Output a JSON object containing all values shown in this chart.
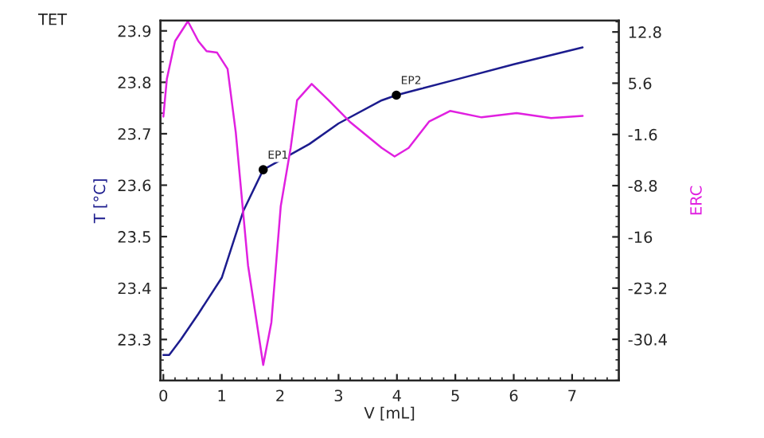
{
  "chart_data": {
    "type": "line",
    "title": "TET",
    "xlabel": "V [mL]",
    "ylabel": "T [°C]",
    "y2label": "ERC",
    "xlim": [
      -0.05,
      7.8
    ],
    "xticks": [
      0,
      1,
      2,
      3,
      4,
      5,
      6,
      7
    ],
    "ylim": [
      23.22,
      23.92
    ],
    "yticks": [
      23.3,
      23.4,
      23.5,
      23.6,
      23.7,
      23.8,
      23.9
    ],
    "y2lim": [
      -36.2,
      14.4
    ],
    "y2ticks": [
      -30.4,
      -23.2,
      -16,
      -8.8,
      -1.6,
      5.6,
      12.8
    ],
    "grid": false,
    "legend": false,
    "series": [
      {
        "color": "#1c1c8e",
        "x": [
          0,
          0.1,
          0.3,
          0.6,
          1.0,
          1.37,
          1.71,
          2.5,
          3.0,
          3.74,
          3.99,
          5.0,
          6.0,
          7.18
        ],
        "values": [
          23.27,
          23.27,
          23.3,
          23.35,
          23.42,
          23.55,
          23.63,
          23.68,
          23.72,
          23.765,
          23.775,
          23.805,
          23.835,
          23.868
        ]
      },
      {
        "color": "#e020e0",
        "axis": "y2",
        "x": [
          0,
          0.06,
          0.2,
          0.42,
          0.6,
          0.74,
          0.92,
          1.1,
          1.24,
          1.45,
          1.71,
          1.85,
          2.01,
          2.18,
          2.29,
          2.54,
          2.83,
          3.19,
          3.74,
          3.96,
          4.2,
          4.55,
          4.91,
          5.45,
          6.05,
          6.64,
          7.18
        ],
        "values": [
          0.9,
          6.2,
          11.5,
          14.3,
          11.5,
          10.1,
          9.9,
          7.6,
          -1.3,
          -20,
          -34.0,
          -28,
          -11.7,
          -3.5,
          3.2,
          5.5,
          3.2,
          0.2,
          -3.5,
          -4.7,
          -3.5,
          0.2,
          1.7,
          0.8,
          1.4,
          0.7,
          1.0
        ]
      },
      {
        "type": "scatter",
        "color": "#000000",
        "marker": "circle",
        "x": [
          1.71,
          3.99
        ],
        "values": [
          23.63,
          23.775
        ]
      }
    ],
    "annotations": [
      {
        "text": "EP1",
        "x": 1.71,
        "y": 23.63
      },
      {
        "text": "EP2",
        "x": 3.99,
        "y": 23.775
      }
    ]
  }
}
